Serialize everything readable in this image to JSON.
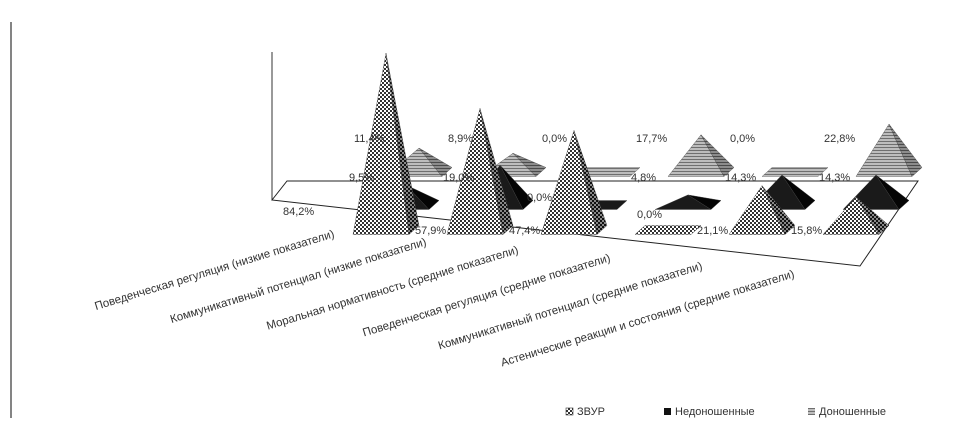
{
  "chart_data": {
    "type": "bar",
    "style": "3d-pyramid",
    "categories": [
      "Поведенческая регуляция (низкие показатели)",
      "Коммуникативный потенциал (низкие показатели)",
      "Моральная нормативность (средние показатели)",
      "Поведенческая регуляция (средние показатели)",
      "Коммуникативный потенциал (средние показатели)",
      "Астенические реакции и состояния (средние показатели)"
    ],
    "series": [
      {
        "name": "ЗВУР",
        "values": [
          84.2,
          57.9,
          47.4,
          0.0,
          21.1,
          15.8
        ],
        "labels": [
          "84,2%",
          "57,9%",
          "47,4%",
          "0,0%",
          "21,1%",
          "15,8%"
        ],
        "color": "#4d4d4d",
        "pattern": "checker"
      },
      {
        "name": "Недоношенные",
        "values": [
          9.5,
          19.0,
          0.0,
          4.8,
          14.3,
          14.3
        ],
        "labels": [
          "9,5%",
          "19,0%",
          "0,0%",
          "4,8%",
          "14,3%",
          "14,3%"
        ],
        "color": "#111111",
        "pattern": "solid"
      },
      {
        "name": "Доношенные",
        "values": [
          11.4,
          8.9,
          0.0,
          17.7,
          0.0,
          22.8
        ],
        "labels": [
          "11,4%",
          "8,9%",
          "0,0%",
          "17,7%",
          "0,0%",
          "22,8%"
        ],
        "color": "#9a9a9a",
        "pattern": "stripes"
      }
    ],
    "legend_position": "bottom-right",
    "title": "",
    "xlabel": "",
    "ylabel": "",
    "grid": false
  }
}
